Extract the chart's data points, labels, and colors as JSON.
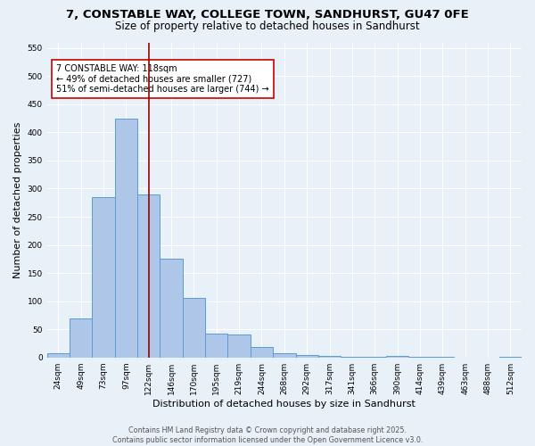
{
  "title_line1": "7, CONSTABLE WAY, COLLEGE TOWN, SANDHURST, GU47 0FE",
  "title_line2": "Size of property relative to detached houses in Sandhurst",
  "xlabel": "Distribution of detached houses by size in Sandhurst",
  "ylabel": "Number of detached properties",
  "bar_labels": [
    "24sqm",
    "49sqm",
    "73sqm",
    "97sqm",
    "122sqm",
    "146sqm",
    "170sqm",
    "195sqm",
    "219sqm",
    "244sqm",
    "268sqm",
    "292sqm",
    "317sqm",
    "341sqm",
    "366sqm",
    "390sqm",
    "414sqm",
    "439sqm",
    "463sqm",
    "488sqm",
    "512sqm"
  ],
  "bar_values": [
    8,
    70,
    285,
    425,
    290,
    175,
    105,
    42,
    40,
    18,
    8,
    5,
    3,
    1,
    1,
    2,
    1,
    1,
    0,
    0,
    1
  ],
  "bar_color": "#aec6e8",
  "bar_edgecolor": "#5b9bd5",
  "vline_x_index": 4,
  "vline_color": "#990000",
  "annotation_text": "7 CONSTABLE WAY: 118sqm\n← 49% of detached houses are smaller (727)\n51% of semi-detached houses are larger (744) →",
  "annotation_box_color": "#ffffff",
  "annotation_box_edgecolor": "#cc0000",
  "ylim": [
    0,
    560
  ],
  "yticks": [
    0,
    50,
    100,
    150,
    200,
    250,
    300,
    350,
    400,
    450,
    500,
    550
  ],
  "bg_color": "#e8f0f8",
  "footer_text": "Contains HM Land Registry data © Crown copyright and database right 2025.\nContains public sector information licensed under the Open Government Licence v3.0.",
  "title_fontsize": 9.5,
  "subtitle_fontsize": 8.5,
  "axis_label_fontsize": 8,
  "tick_fontsize": 6.5,
  "annotation_fontsize": 7,
  "footer_fontsize": 5.8
}
